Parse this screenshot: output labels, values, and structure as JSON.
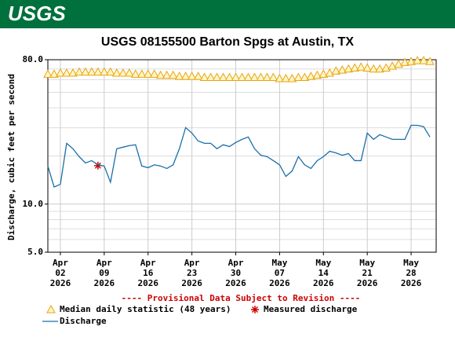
{
  "header": {
    "logo": "USGS"
  },
  "chart_data": {
    "type": "line",
    "title": "USGS 08155500 Barton Spgs at Austin, TX",
    "ylabel": "Discharge, cubic feet per second",
    "note": "---- Provisional Data Subject to Revision ----",
    "log_y": true,
    "grid": true,
    "ylim": [
      5,
      80
    ],
    "yticks": [
      {
        "value": 5,
        "label": "5.0"
      },
      {
        "value": 10,
        "label": "10.0"
      },
      {
        "value": 80,
        "label": "80.0"
      }
    ],
    "yminor": [
      6,
      7,
      8,
      9,
      20,
      30,
      40,
      50,
      60,
      70
    ],
    "xlim": [
      "2026-03-31",
      "2026-06-01"
    ],
    "xticks": [
      {
        "value": "2026-04-02",
        "label": [
          "Apr",
          "02",
          "2026"
        ]
      },
      {
        "value": "2026-04-09",
        "label": [
          "Apr",
          "09",
          "2026"
        ]
      },
      {
        "value": "2026-04-16",
        "label": [
          "Apr",
          "16",
          "2026"
        ]
      },
      {
        "value": "2026-04-23",
        "label": [
          "Apr",
          "23",
          "2026"
        ]
      },
      {
        "value": "2026-04-30",
        "label": [
          "Apr",
          "30",
          "2026"
        ]
      },
      {
        "value": "2026-05-07",
        "label": [
          "May",
          "07",
          "2026"
        ]
      },
      {
        "value": "2026-05-14",
        "label": [
          "May",
          "14",
          "2026"
        ]
      },
      {
        "value": "2026-05-21",
        "label": [
          "May",
          "21",
          "2026"
        ]
      },
      {
        "value": "2026-05-28",
        "label": [
          "May",
          "28",
          "2026"
        ]
      }
    ],
    "x": [
      "2026-03-31",
      "2026-04-01",
      "2026-04-02",
      "2026-04-03",
      "2026-04-04",
      "2026-04-05",
      "2026-04-06",
      "2026-04-07",
      "2026-04-08",
      "2026-04-09",
      "2026-04-10",
      "2026-04-11",
      "2026-04-12",
      "2026-04-13",
      "2026-04-14",
      "2026-04-15",
      "2026-04-16",
      "2026-04-17",
      "2026-04-18",
      "2026-04-19",
      "2026-04-20",
      "2026-04-21",
      "2026-04-22",
      "2026-04-23",
      "2026-04-24",
      "2026-04-25",
      "2026-04-26",
      "2026-04-27",
      "2026-04-28",
      "2026-04-29",
      "2026-04-30",
      "2026-05-01",
      "2026-05-02",
      "2026-05-03",
      "2026-05-04",
      "2026-05-05",
      "2026-05-06",
      "2026-05-07",
      "2026-05-08",
      "2026-05-09",
      "2026-05-10",
      "2026-05-11",
      "2026-05-12",
      "2026-05-13",
      "2026-05-14",
      "2026-05-15",
      "2026-05-16",
      "2026-05-17",
      "2026-05-18",
      "2026-05-19",
      "2026-05-20",
      "2026-05-21",
      "2026-05-22",
      "2026-05-23",
      "2026-05-24",
      "2026-05-25",
      "2026-05-26",
      "2026-05-27",
      "2026-05-28",
      "2026-05-29",
      "2026-05-30",
      "2026-05-31"
    ],
    "series": [
      {
        "name": "Median daily statistic (48 years)",
        "style": "triangle",
        "color": "#e8a317",
        "values": [
          65,
          65,
          66,
          66,
          66,
          67,
          67,
          67,
          67,
          67,
          67,
          66,
          66,
          66,
          65,
          65,
          65,
          65,
          64,
          64,
          64,
          63,
          63,
          63,
          63,
          62,
          62,
          62,
          62,
          62,
          62,
          62,
          62,
          62,
          62,
          62,
          62,
          61,
          61,
          61,
          62,
          62,
          63,
          64,
          65,
          66,
          68,
          69,
          70,
          71,
          72,
          71,
          70,
          70,
          71,
          73,
          75,
          77,
          78,
          79,
          79,
          78
        ]
      },
      {
        "name": "Measured discharge",
        "style": "asterisk",
        "color": "#cc0000",
        "x": [
          "2026-04-08"
        ],
        "values": [
          17.4
        ]
      },
      {
        "name": "Discharge",
        "style": "line",
        "color": "#1a6fa8",
        "values": [
          17.3,
          12.8,
          13.3,
          24.0,
          22.2,
          19.8,
          18.1,
          18.7,
          17.6,
          17.3,
          13.7,
          22.2,
          22.7,
          23.2,
          23.5,
          17.3,
          16.9,
          17.6,
          17.3,
          16.7,
          17.6,
          22.2,
          30.1,
          27.8,
          24.8,
          24.0,
          24.0,
          22.2,
          23.5,
          22.9,
          24.3,
          25.4,
          26.3,
          22.2,
          20.2,
          19.8,
          18.7,
          17.6,
          14.9,
          16.1,
          19.8,
          17.6,
          16.7,
          18.7,
          19.8,
          21.4,
          20.9,
          20.2,
          20.7,
          18.7,
          18.7,
          27.8,
          25.4,
          27.2,
          26.3,
          25.4,
          25.4,
          25.4,
          31.1,
          31.1,
          30.5,
          26.3
        ]
      }
    ]
  }
}
